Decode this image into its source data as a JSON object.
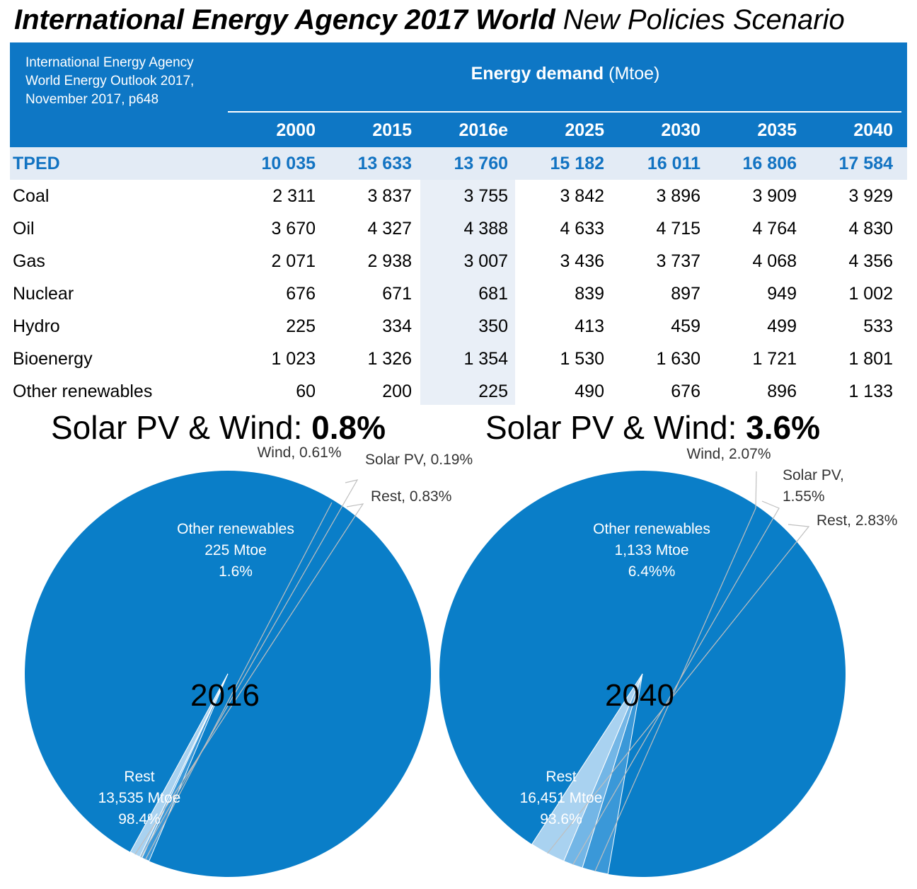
{
  "title": {
    "main": "International Energy Agency 2017 World",
    "sub": "New Policies Scenario"
  },
  "table": {
    "source_lines": [
      "International Energy Agency",
      "World Energy Outlook 2017,",
      "November 2017, p648"
    ],
    "header_bold": "Energy demand",
    "header_unit": "(Mtoe)",
    "years": [
      "2000",
      "2015",
      "2016e",
      "2025",
      "2030",
      "2035",
      "2040"
    ],
    "rows": [
      {
        "label": "TPED",
        "values": [
          "10 035",
          "13 633",
          "13 760",
          "15 182",
          "16 011",
          "16 806",
          "17 584"
        ]
      },
      {
        "label": "Coal",
        "values": [
          "2 311",
          "3 837",
          "3 755",
          "3 842",
          "3 896",
          "3 909",
          "3 929"
        ]
      },
      {
        "label": "Oil",
        "values": [
          "3 670",
          "4 327",
          "4 388",
          "4 633",
          "4 715",
          "4 764",
          "4 830"
        ]
      },
      {
        "label": "Gas",
        "values": [
          "2 071",
          "2 938",
          "3 007",
          "3 436",
          "3 737",
          "4 068",
          "4 356"
        ]
      },
      {
        "label": "Nuclear",
        "values": [
          "676",
          "671",
          "681",
          "839",
          "897",
          "949",
          "1 002"
        ]
      },
      {
        "label": "Hydro",
        "values": [
          "225",
          "334",
          "350",
          "413",
          "459",
          "499",
          "533"
        ]
      },
      {
        "label": "Bioenergy",
        "values": [
          "1 023",
          "1 326",
          "1 354",
          "1 530",
          "1 630",
          "1 721",
          "1 801"
        ]
      },
      {
        "label": "Other renewables",
        "values": [
          "60",
          "200",
          "225",
          "490",
          "676",
          "896",
          "1 133"
        ]
      }
    ]
  },
  "pie_titles": [
    {
      "text": "Solar PV & Wind: ",
      "value": "0.8%"
    },
    {
      "text": "Solar PV & Wind: ",
      "value": "3.6%"
    }
  ],
  "colors": {
    "header": "#0e77c5",
    "tped_band": "#e3ebf5",
    "tped_text": "#1273c2",
    "shade_2016e": "#e9eff7",
    "rest": "#0a7ec8",
    "wind": "#3a98d8",
    "solar": "#73b6e6",
    "other_rest": "#a9d2f0"
  },
  "chart_data": [
    {
      "type": "pie",
      "center_label": "2016",
      "slices": [
        {
          "name": "Rest",
          "value": 98.4,
          "lines": [
            "Rest",
            "13,535 Mtoe",
            "98.4%"
          ]
        },
        {
          "name": "Wind",
          "value": 0.61,
          "lines": [
            "Wind, 0.61%"
          ]
        },
        {
          "name": "Solar PV",
          "value": 0.19,
          "lines": [
            "Solar PV, 0.19%"
          ]
        },
        {
          "name": "Rest",
          "value": 0.83,
          "lines": [
            "Rest,  0.83%"
          ]
        }
      ],
      "group_label": [
        "Other renewables",
        "225 Mtoe",
        "1.6%"
      ]
    },
    {
      "type": "pie",
      "center_label": "2040",
      "slices": [
        {
          "name": "Rest",
          "value": 93.6,
          "lines": [
            "Rest",
            "16,451 Mtoe",
            "93.6%"
          ]
        },
        {
          "name": "Wind",
          "value": 2.07,
          "lines": [
            "Wind, 2.07%"
          ]
        },
        {
          "name": "Solar PV",
          "value": 1.55,
          "lines": [
            "Solar PV,",
            "1.55%"
          ]
        },
        {
          "name": "Rest",
          "value": 2.83,
          "lines": [
            "Rest, 2.83%"
          ]
        }
      ],
      "group_label": [
        "Other renewables",
        "1,133 Mtoe",
        "6.4%%"
      ]
    }
  ]
}
